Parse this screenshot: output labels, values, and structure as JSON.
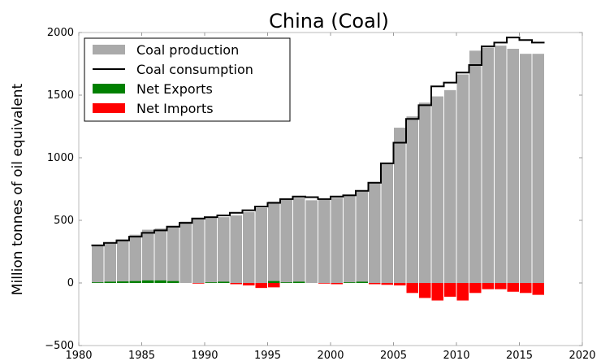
{
  "chart_data": {
    "type": "bar",
    "title": "China (Coal)",
    "xlabel": "",
    "ylabel": "Million tonnes of oil equivalent",
    "xlim": [
      1980,
      2020
    ],
    "ylim": [
      -500,
      2000
    ],
    "xticks": [
      "1980",
      "1985",
      "1990",
      "1995",
      "2000",
      "2005",
      "2010",
      "2015",
      "2020"
    ],
    "yticks": [
      "−500",
      "0",
      "500",
      "1000",
      "1500",
      "2000"
    ],
    "legend_position": "top-left",
    "grid": false,
    "colors": {
      "production": "#aaaaaa",
      "consumption": "#000000",
      "exports": "#008000",
      "imports": "#ff0000"
    },
    "legend": [
      {
        "label": "Coal production",
        "kind": "production"
      },
      {
        "label": "Coal consumption",
        "kind": "consumption"
      },
      {
        "label": "Net Exports",
        "kind": "exports"
      },
      {
        "label": "Net Imports",
        "kind": "imports"
      }
    ],
    "years": [
      1981,
      1982,
      1983,
      1984,
      1985,
      1986,
      1987,
      1988,
      1989,
      1990,
      1991,
      1992,
      1993,
      1994,
      1995,
      1996,
      1997,
      1998,
      1999,
      2000,
      2001,
      2002,
      2003,
      2004,
      2005,
      2006,
      2007,
      2008,
      2009,
      2010,
      2011,
      2012,
      2013,
      2014,
      2015,
      2016
    ],
    "series": [
      {
        "name": "Coal production",
        "values": [
          305,
          320,
          345,
          385,
          425,
          435,
          450,
          490,
          510,
          520,
          525,
          540,
          565,
          600,
          650,
          670,
          680,
          660,
          665,
          680,
          700,
          730,
          800,
          960,
          1240,
          1330,
          1440,
          1490,
          1540,
          1665,
          1855,
          1880,
          1895,
          1870,
          1830,
          1830
        ]
      },
      {
        "name": "Coal consumption",
        "values": [
          300,
          320,
          340,
          370,
          400,
          420,
          450,
          480,
          515,
          525,
          540,
          560,
          580,
          610,
          640,
          670,
          690,
          685,
          670,
          690,
          700,
          735,
          800,
          955,
          1120,
          1310,
          1420,
          1570,
          1600,
          1680,
          1740,
          1890,
          1920,
          1960,
          1940,
          1920
        ]
      },
      {
        "name": "Net Exports",
        "values": [
          5,
          10,
          12,
          15,
          20,
          20,
          15,
          0,
          0,
          5,
          10,
          0,
          0,
          0,
          15,
          5,
          10,
          0,
          0,
          0,
          5,
          10,
          0,
          0,
          0,
          0,
          0,
          0,
          0,
          0,
          0,
          0,
          0,
          0,
          0,
          0
        ]
      },
      {
        "name": "Net Imports",
        "values": [
          0,
          0,
          0,
          0,
          0,
          0,
          0,
          0,
          5,
          0,
          0,
          10,
          20,
          40,
          35,
          0,
          0,
          0,
          5,
          10,
          0,
          0,
          10,
          15,
          20,
          80,
          120,
          140,
          110,
          140,
          80,
          50,
          50,
          70,
          80,
          95
        ]
      }
    ]
  }
}
